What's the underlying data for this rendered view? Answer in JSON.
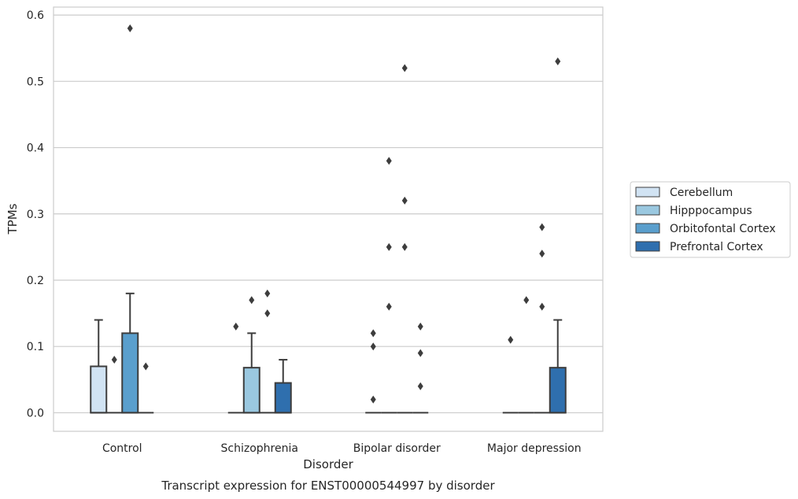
{
  "chart_data": {
    "type": "box",
    "caption": "Transcript expression for ENST00000544997 by disorder",
    "xlabel": "Disorder",
    "ylabel": "TPMs",
    "ylim": [
      -0.028,
      0.612
    ],
    "yticks": [
      0.0,
      0.1,
      0.2,
      0.3,
      0.4,
      0.5,
      0.6
    ],
    "ytick_labels": [
      "0.0",
      "0.1",
      "0.2",
      "0.3",
      "0.4",
      "0.5",
      "0.6"
    ],
    "grid": "horizontal",
    "legend_position": "right",
    "categories": [
      "Control",
      "Schizophrenia",
      "Bipolar disorder",
      "Major depression"
    ],
    "series": [
      {
        "name": "Cerebellum",
        "color": "#d1e3f3",
        "boxes": [
          {
            "q1": 0.0,
            "median": 0.0,
            "q3": 0.07,
            "whisker_low": 0.0,
            "whisker_high": 0.14,
            "outliers": []
          },
          {
            "q1": 0.0,
            "median": 0.0,
            "q3": 0.0,
            "whisker_low": 0.0,
            "whisker_high": 0.0,
            "outliers": [
              0.13
            ]
          },
          {
            "q1": 0.0,
            "median": 0.0,
            "q3": 0.0,
            "whisker_low": 0.0,
            "whisker_high": 0.0,
            "outliers": [
              0.02,
              0.1,
              0.12
            ]
          },
          {
            "q1": 0.0,
            "median": 0.0,
            "q3": 0.0,
            "whisker_low": 0.0,
            "whisker_high": 0.0,
            "outliers": [
              0.11
            ]
          }
        ]
      },
      {
        "name": "Hipppocampus",
        "color": "#9ac8e0",
        "boxes": [
          {
            "q1": 0.0,
            "median": 0.0,
            "q3": 0.0,
            "whisker_low": 0.0,
            "whisker_high": 0.0,
            "outliers": [
              0.08
            ]
          },
          {
            "q1": 0.0,
            "median": 0.0,
            "q3": 0.068,
            "whisker_low": 0.0,
            "whisker_high": 0.12,
            "outliers": [
              0.17
            ]
          },
          {
            "q1": 0.0,
            "median": 0.0,
            "q3": 0.0,
            "whisker_low": 0.0,
            "whisker_high": 0.0,
            "outliers": [
              0.16,
              0.25,
              0.38
            ]
          },
          {
            "q1": 0.0,
            "median": 0.0,
            "q3": 0.0,
            "whisker_low": 0.0,
            "whisker_high": 0.0,
            "outliers": [
              0.17
            ]
          }
        ]
      },
      {
        "name": "Orbitofontal Cortex",
        "color": "#5a9fcd",
        "boxes": [
          {
            "q1": 0.0,
            "median": 0.0,
            "q3": 0.12,
            "whisker_low": 0.0,
            "whisker_high": 0.18,
            "outliers": [
              0.58
            ]
          },
          {
            "q1": 0.0,
            "median": 0.0,
            "q3": 0.0,
            "whisker_low": 0.0,
            "whisker_high": 0.0,
            "outliers": [
              0.15,
              0.18
            ]
          },
          {
            "q1": 0.0,
            "median": 0.0,
            "q3": 0.0,
            "whisker_low": 0.0,
            "whisker_high": 0.0,
            "outliers": [
              0.25,
              0.32,
              0.52
            ]
          },
          {
            "q1": 0.0,
            "median": 0.0,
            "q3": 0.0,
            "whisker_low": 0.0,
            "whisker_high": 0.0,
            "outliers": [
              0.16,
              0.24,
              0.28
            ]
          }
        ]
      },
      {
        "name": "Prefrontal Cortex",
        "color": "#2f6fae",
        "boxes": [
          {
            "q1": 0.0,
            "median": 0.0,
            "q3": 0.0,
            "whisker_low": 0.0,
            "whisker_high": 0.0,
            "outliers": [
              0.07
            ]
          },
          {
            "q1": 0.0,
            "median": 0.0,
            "q3": 0.045,
            "whisker_low": 0.0,
            "whisker_high": 0.08,
            "outliers": []
          },
          {
            "q1": 0.0,
            "median": 0.0,
            "q3": 0.0,
            "whisker_low": 0.0,
            "whisker_high": 0.0,
            "outliers": [
              0.04,
              0.09,
              0.13
            ]
          },
          {
            "q1": 0.0,
            "median": 0.0,
            "q3": 0.068,
            "whisker_low": 0.0,
            "whisker_high": 0.14,
            "outliers": [
              0.53
            ]
          }
        ]
      }
    ],
    "line_color": "#3d3d3d",
    "grid_color": "#cccccc",
    "frame_color": "#cccccc"
  }
}
